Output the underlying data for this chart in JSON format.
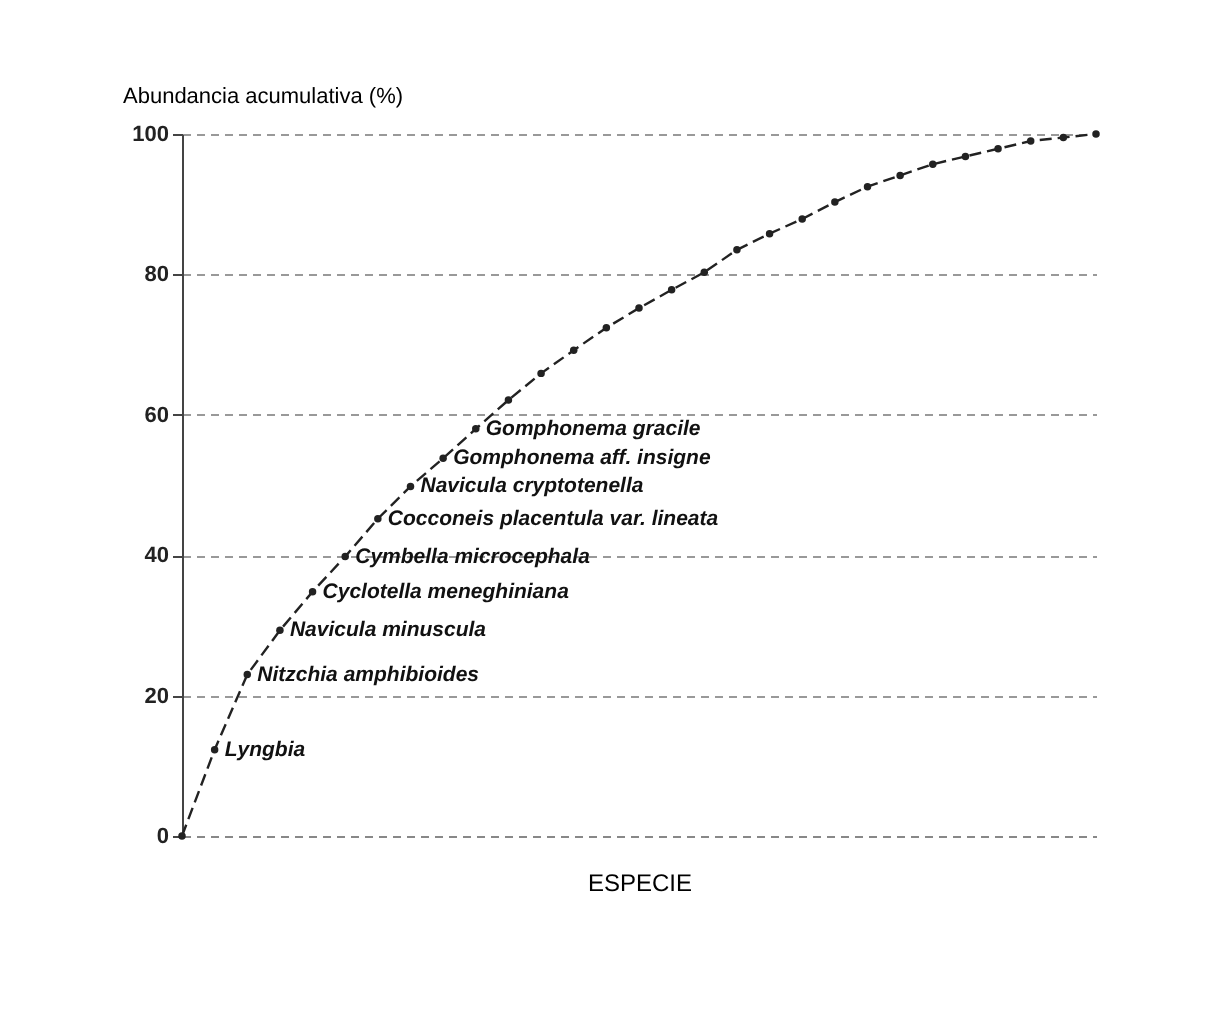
{
  "chart_data": {
    "type": "line",
    "ylabel": "Abundancia acumulativa (%)",
    "xlabel": "ESPECIE",
    "categories": [
      null,
      null,
      null,
      null,
      null,
      null,
      null,
      null,
      null,
      null,
      null,
      null,
      null,
      null,
      null,
      null,
      null,
      null,
      null,
      null,
      null,
      null,
      null,
      null,
      null,
      null,
      null,
      null,
      null
    ],
    "series": [
      {
        "color": "#222222",
        "values": [
          0,
          12.3,
          23.0,
          29.3,
          34.8,
          39.8,
          45.2,
          49.8,
          53.8,
          58.0,
          62.1,
          65.9,
          69.2,
          72.4,
          75.2,
          77.8,
          80.3,
          83.5,
          85.8,
          87.9,
          90.3,
          92.5,
          94.1,
          95.7,
          96.8,
          97.9,
          99.0,
          99.5,
          100
        ],
        "value_labels": [
          null,
          "Lyngbia",
          "Nitzchia amphibioides",
          "Navicula minuscula",
          "Cyclotella meneghiniana",
          "Cymbella microcephala",
          "Cocconeis placentula var. lineata",
          "Navicula cryptotenella",
          "Gomphonema aff. insigne",
          "Gomphonema gracile",
          null,
          null,
          null,
          null,
          null,
          null,
          null,
          null,
          null,
          null,
          null,
          null,
          null,
          null,
          null,
          null,
          null,
          null,
          null
        ]
      }
    ],
    "ylim": [
      0,
      100
    ],
    "yticks": [
      0,
      20,
      40,
      60,
      80,
      100
    ],
    "grid": "y",
    "tick_labels": "y",
    "marker": "circle",
    "line_style": "dashed"
  }
}
